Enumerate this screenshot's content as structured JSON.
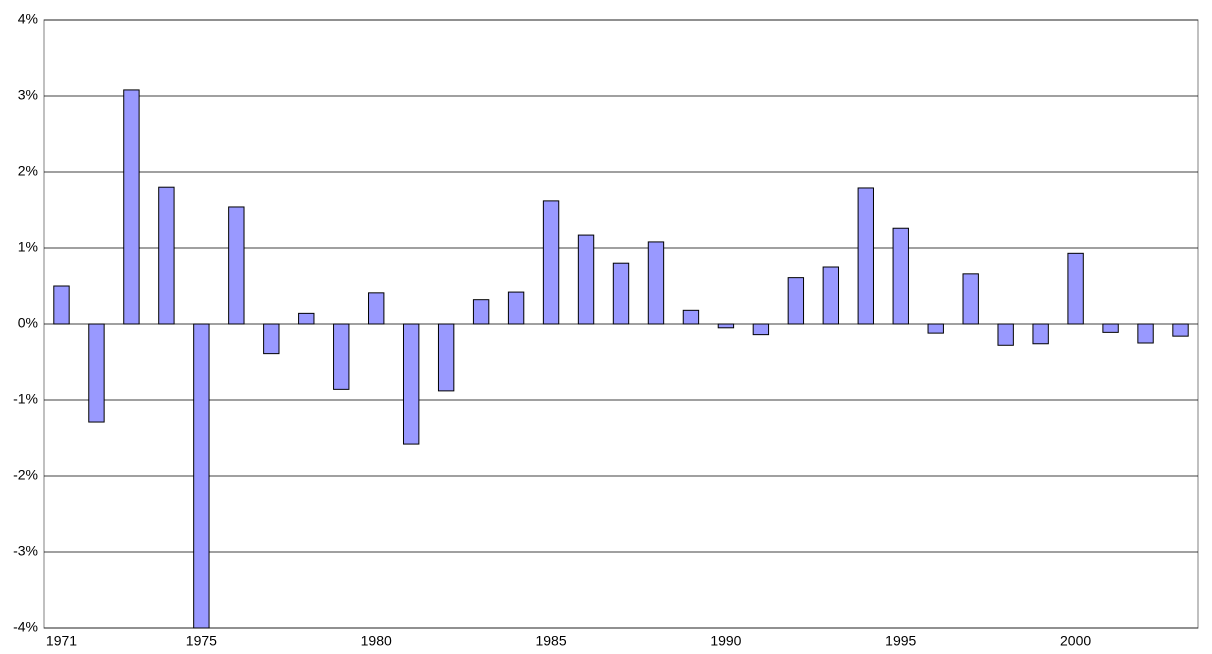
{
  "chart_data": {
    "type": "bar",
    "categories": [
      "1971",
      null,
      null,
      null,
      "1975",
      null,
      null,
      null,
      null,
      "1980",
      null,
      null,
      null,
      null,
      "1985",
      null,
      null,
      null,
      null,
      "1990",
      null,
      null,
      null,
      null,
      "1995",
      null,
      null,
      null,
      null,
      "2000",
      null,
      null,
      null
    ],
    "values": [
      0.5,
      -1.29,
      3.08,
      1.8,
      -4.0,
      1.54,
      -0.39,
      0.14,
      -0.86,
      0.41,
      -1.58,
      -0.88,
      0.32,
      0.42,
      1.62,
      1.17,
      0.8,
      1.08,
      0.18,
      -0.05,
      -0.14,
      0.61,
      0.75,
      1.79,
      1.26,
      -0.12,
      0.66,
      -0.28,
      -0.26,
      0.93,
      -0.11,
      -0.25,
      -0.16
    ],
    "color": "#9999ff",
    "ylim": [
      -4,
      4
    ],
    "yticks": [
      {
        "value": -4,
        "label": "-4%"
      },
      {
        "value": -3,
        "label": "-3%"
      },
      {
        "value": -2,
        "label": "-2%"
      },
      {
        "value": -1,
        "label": "-1%"
      },
      {
        "value": 0,
        "label": "0%"
      },
      {
        "value": 1,
        "label": "1%"
      },
      {
        "value": 2,
        "label": "2%"
      },
      {
        "value": 3,
        "label": "3%"
      },
      {
        "value": 4,
        "label": "4%"
      }
    ],
    "grid": true
  }
}
